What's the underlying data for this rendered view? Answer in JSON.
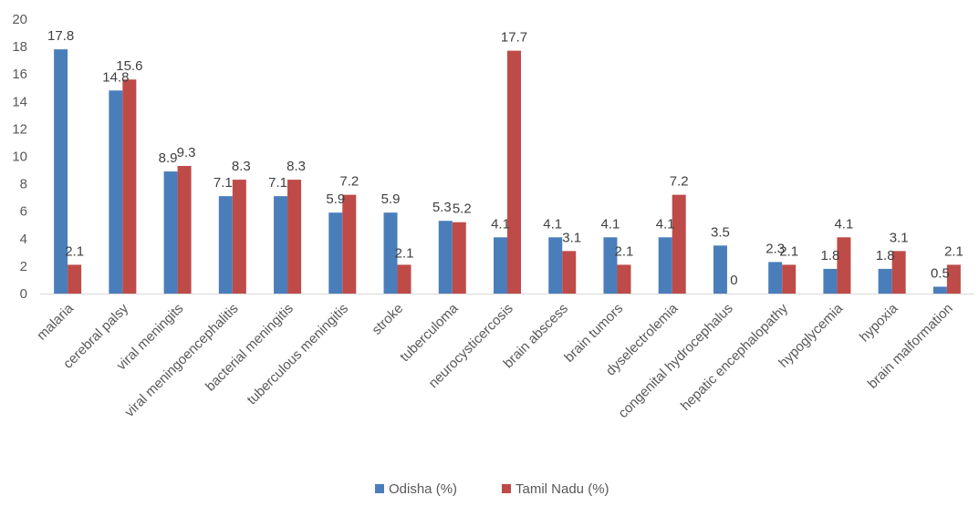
{
  "chart_data": {
    "type": "bar",
    "categories": [
      "malaria",
      "cerebral palsy",
      "viral meningits",
      "viral meningoencephalitis",
      "bacterial meningitis",
      "tuberculous meningitis",
      "stroke",
      "tuberculoma",
      "neurocysticercosis",
      "brain abscess",
      "brain tumors",
      "dyselectrolemia",
      "congenital hydrocephalus",
      "hepatic encephalopathy",
      "hypoglycemia",
      "hypoxia",
      "brain malformation"
    ],
    "series": [
      {
        "name": "Odisha (%)",
        "color": "#4a7ebb",
        "values": [
          17.8,
          14.8,
          8.9,
          7.1,
          7.1,
          5.9,
          5.9,
          5.3,
          4.1,
          4.1,
          4.1,
          4.1,
          3.5,
          2.3,
          1.8,
          1.8,
          0.5
        ]
      },
      {
        "name": "Tamil Nadu (%)",
        "color": "#be4b48",
        "values": [
          2.1,
          15.6,
          9.3,
          8.3,
          8.3,
          7.2,
          2.1,
          5.2,
          17.7,
          3.1,
          2.1,
          7.2,
          0,
          2.1,
          4.1,
          3.1,
          2.1
        ]
      }
    ],
    "ylim": [
      0,
      20
    ],
    "yticks": [
      0,
      2,
      4,
      6,
      8,
      10,
      12,
      14,
      16,
      18,
      20
    ],
    "grid": false,
    "legend_position": "bottom"
  }
}
